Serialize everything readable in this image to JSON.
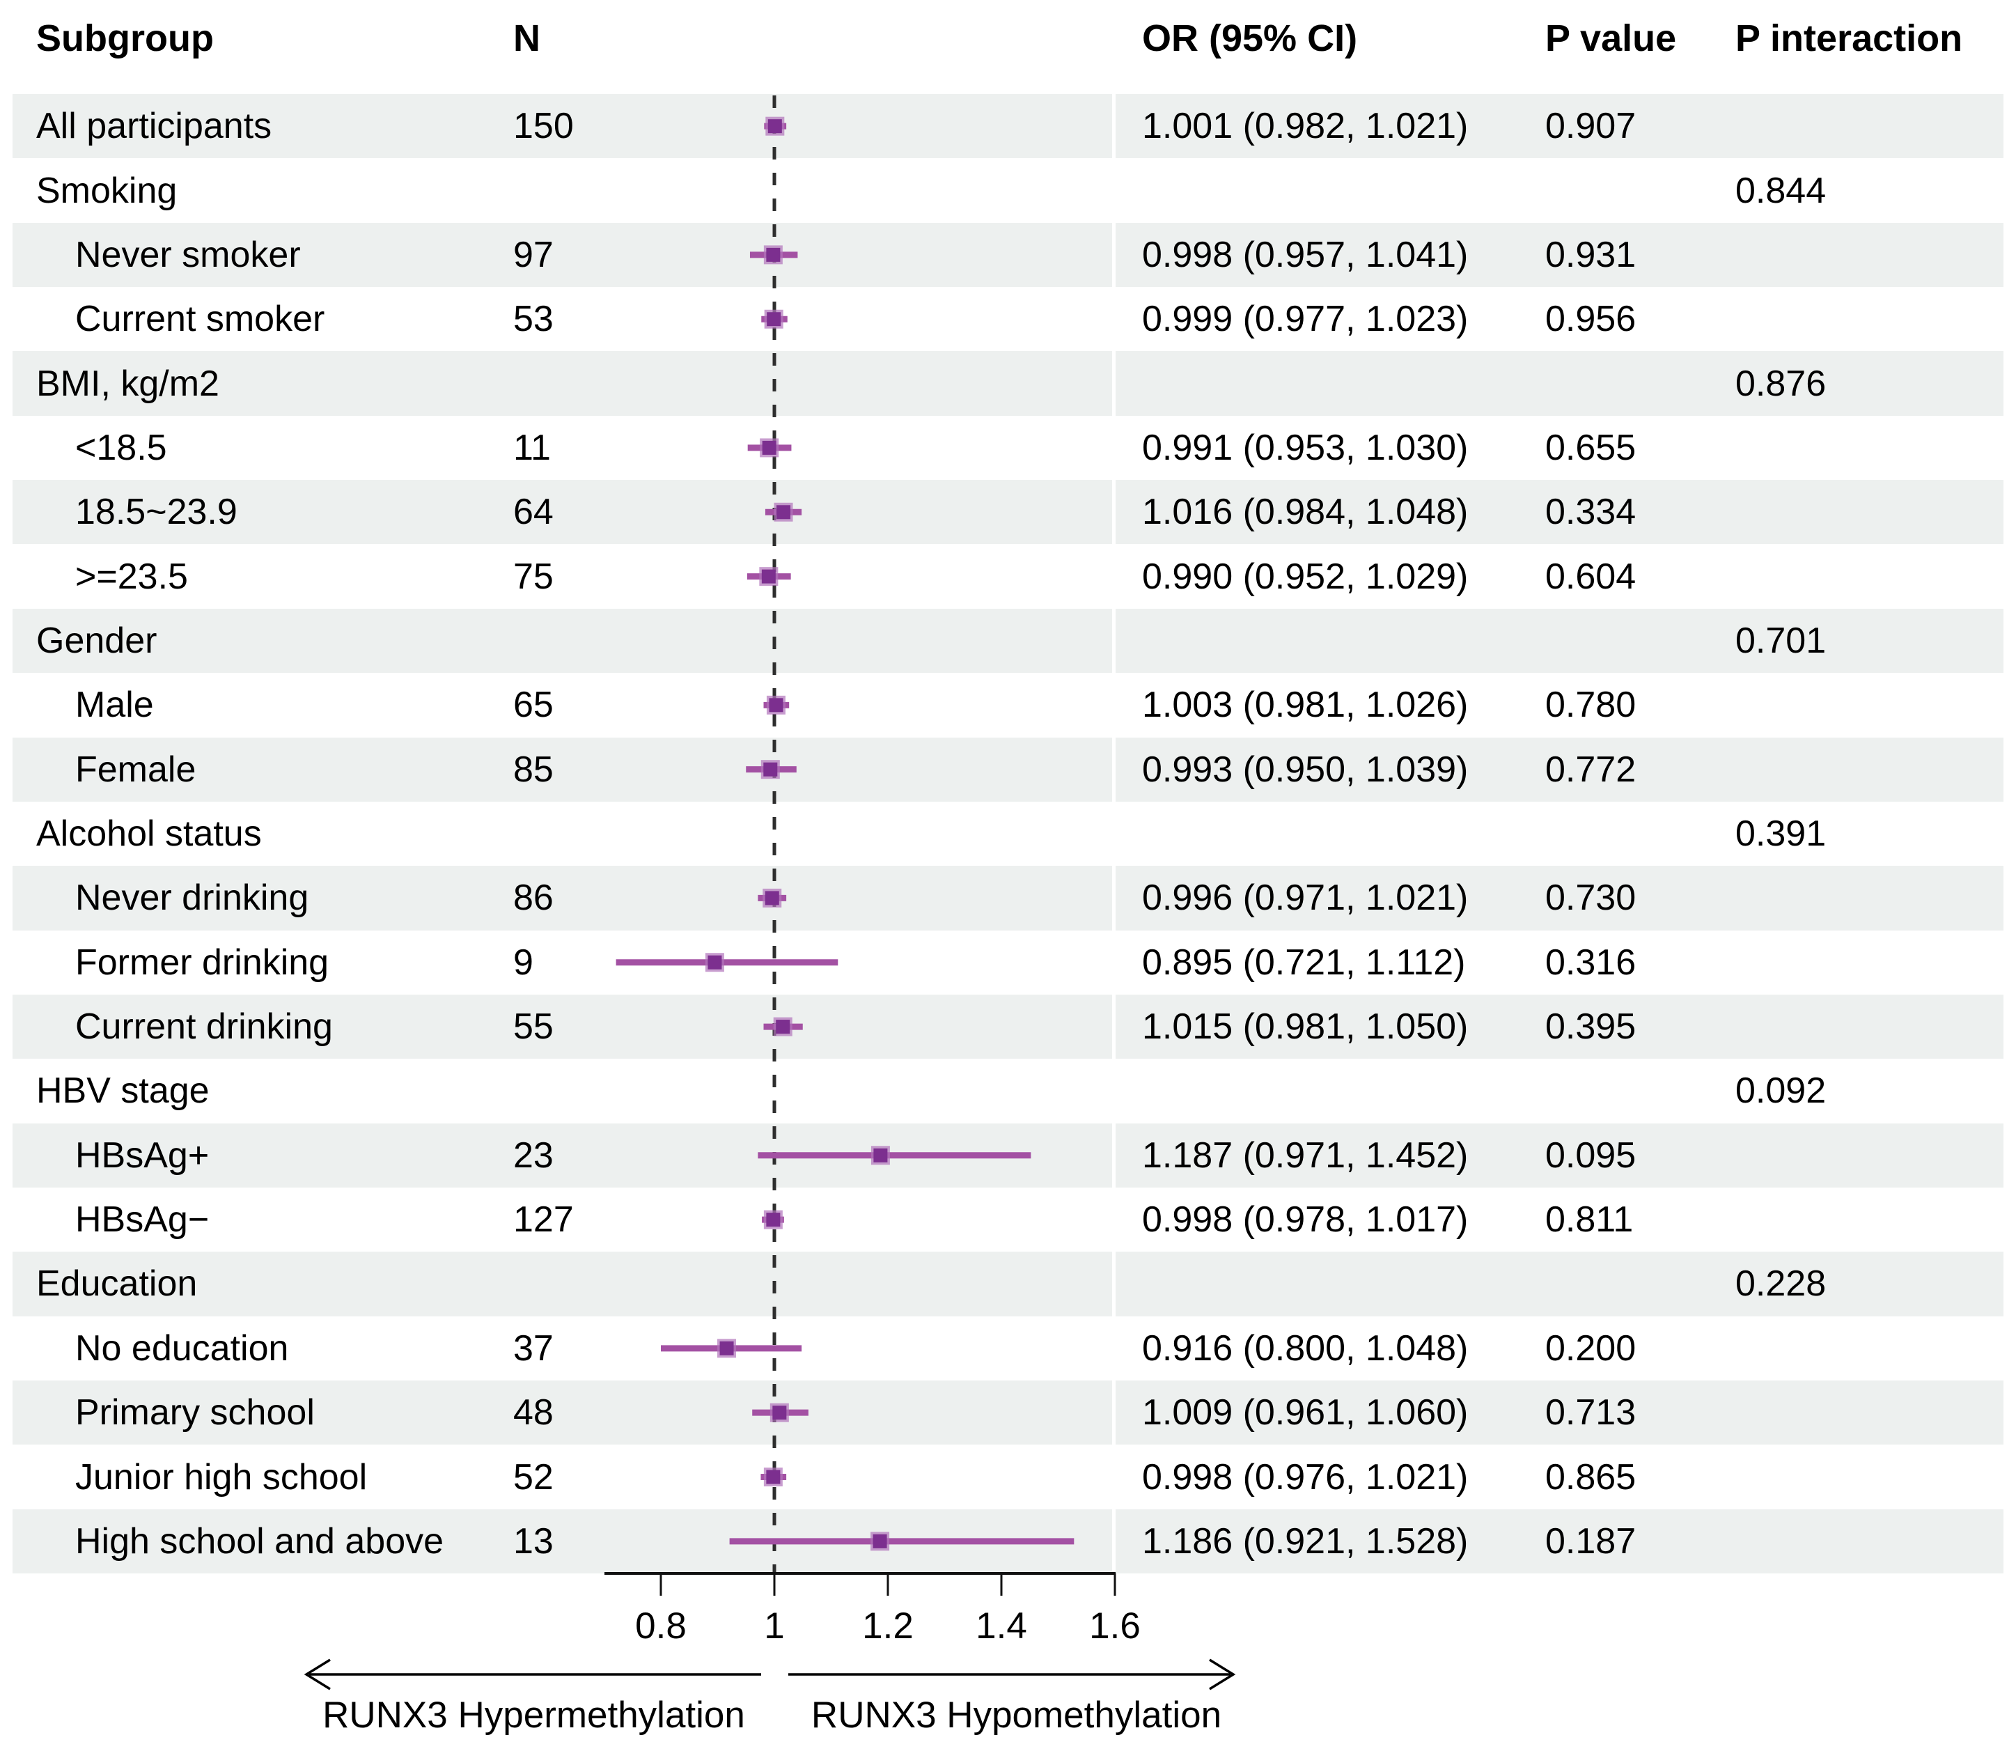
{
  "header": {
    "subgroup": "Subgroup",
    "n": "N",
    "or_ci": "OR (95% CI)",
    "p_value": "P value",
    "p_interaction": "P interaction"
  },
  "axis": {
    "tick_labels": [
      "0.8",
      "1",
      "1.2",
      "1.4",
      "1.6"
    ],
    "tick_values": [
      0.8,
      1,
      1.2,
      1.4,
      1.6
    ],
    "reference_value": 1,
    "range_min": 0.7,
    "range_max": 1.6
  },
  "footer": {
    "left_arrow_label": "RUNX3 Hypermethylation",
    "right_arrow_label": "RUNX3 Hypomethylation"
  },
  "colors": {
    "marker_core": "#7c2f8f",
    "marker_halo": "#b173ba",
    "ci_line": "#a351a3",
    "shaded_row": "#edf0ef",
    "reference_line": "#2e2e2e",
    "axis_line": "#111111",
    "text": "#000000"
  },
  "chart_data": {
    "type": "forest",
    "title": "",
    "columns": [
      "Subgroup",
      "N",
      "OR (95% CI)",
      "P value",
      "P interaction"
    ],
    "or_axis": {
      "ticks": [
        0.8,
        1,
        1.2,
        1.4,
        1.6
      ],
      "min": 0.7,
      "max": 1.6,
      "reference": 1
    },
    "effect_direction": {
      "left": "RUNX3 Hypermethylation",
      "right": "RUNX3 Hypomethylation"
    },
    "rows": [
      {
        "label": "All participants",
        "indent": 0,
        "shaded": true,
        "n": "150",
        "or": 1.001,
        "lo": 0.982,
        "hi": 1.021,
        "or_ci": "1.001 (0.982, 1.021)",
        "p": "0.907",
        "p_int": ""
      },
      {
        "label": "Smoking",
        "indent": 0,
        "shaded": false,
        "n": "",
        "or_ci": "",
        "p": "",
        "p_int": "0.844"
      },
      {
        "label": "Never smoker",
        "indent": 1,
        "shaded": true,
        "n": "97",
        "or": 0.998,
        "lo": 0.957,
        "hi": 1.041,
        "or_ci": "0.998 (0.957, 1.041)",
        "p": "0.931",
        "p_int": ""
      },
      {
        "label": "Current smoker",
        "indent": 1,
        "shaded": false,
        "n": "53",
        "or": 0.999,
        "lo": 0.977,
        "hi": 1.023,
        "or_ci": "0.999 (0.977, 1.023)",
        "p": "0.956",
        "p_int": ""
      },
      {
        "label": "BMI, kg/m2",
        "indent": 0,
        "shaded": true,
        "n": "",
        "or_ci": "",
        "p": "",
        "p_int": "0.876"
      },
      {
        "label": "<18.5",
        "indent": 1,
        "shaded": false,
        "n": "11",
        "or": 0.991,
        "lo": 0.953,
        "hi": 1.03,
        "or_ci": "0.991 (0.953, 1.030)",
        "p": "0.655",
        "p_int": ""
      },
      {
        "label": "18.5~23.9",
        "indent": 1,
        "shaded": true,
        "n": "64",
        "or": 1.016,
        "lo": 0.984,
        "hi": 1.048,
        "or_ci": "1.016 (0.984, 1.048)",
        "p": "0.334",
        "p_int": ""
      },
      {
        "label": ">=23.5",
        "indent": 1,
        "shaded": false,
        "n": "75",
        "or": 0.99,
        "lo": 0.952,
        "hi": 1.029,
        "or_ci": "0.990 (0.952, 1.029)",
        "p": "0.604",
        "p_int": ""
      },
      {
        "label": "Gender",
        "indent": 0,
        "shaded": true,
        "n": "",
        "or_ci": "",
        "p": "",
        "p_int": "0.701"
      },
      {
        "label": "Male",
        "indent": 1,
        "shaded": false,
        "n": "65",
        "or": 1.003,
        "lo": 0.981,
        "hi": 1.026,
        "or_ci": "1.003 (0.981, 1.026)",
        "p": "0.780",
        "p_int": ""
      },
      {
        "label": "Female",
        "indent": 1,
        "shaded": true,
        "n": "85",
        "or": 0.993,
        "lo": 0.95,
        "hi": 1.039,
        "or_ci": "0.993 (0.950, 1.039)",
        "p": "0.772",
        "p_int": ""
      },
      {
        "label": "Alcohol status",
        "indent": 0,
        "shaded": false,
        "n": "",
        "or_ci": "",
        "p": "",
        "p_int": "0.391"
      },
      {
        "label": "Never drinking",
        "indent": 1,
        "shaded": true,
        "n": "86",
        "or": 0.996,
        "lo": 0.971,
        "hi": 1.021,
        "or_ci": "0.996 (0.971, 1.021)",
        "p": "0.730",
        "p_int": ""
      },
      {
        "label": "Former drinking",
        "indent": 1,
        "shaded": false,
        "n": "9",
        "or": 0.895,
        "lo": 0.721,
        "hi": 1.112,
        "or_ci": "0.895 (0.721, 1.112)",
        "p": "0.316",
        "p_int": ""
      },
      {
        "label": "Current drinking",
        "indent": 1,
        "shaded": true,
        "n": "55",
        "or": 1.015,
        "lo": 0.981,
        "hi": 1.05,
        "or_ci": "1.015 (0.981, 1.050)",
        "p": "0.395",
        "p_int": ""
      },
      {
        "label": "HBV stage",
        "indent": 0,
        "shaded": false,
        "n": "",
        "or_ci": "",
        "p": "",
        "p_int": "0.092"
      },
      {
        "label": "HBsAg+",
        "indent": 1,
        "shaded": true,
        "n": "23",
        "or": 1.187,
        "lo": 0.971,
        "hi": 1.452,
        "or_ci": "1.187 (0.971, 1.452)",
        "p": "0.095",
        "p_int": ""
      },
      {
        "label": "HBsAg−",
        "indent": 1,
        "shaded": false,
        "n": "127",
        "or": 0.998,
        "lo": 0.978,
        "hi": 1.017,
        "or_ci": "0.998 (0.978, 1.017)",
        "p": "0.811",
        "p_int": ""
      },
      {
        "label": "Education",
        "indent": 0,
        "shaded": true,
        "n": "",
        "or_ci": "",
        "p": "",
        "p_int": "0.228"
      },
      {
        "label": "No education",
        "indent": 1,
        "shaded": false,
        "n": "37",
        "or": 0.916,
        "lo": 0.8,
        "hi": 1.048,
        "or_ci": "0.916 (0.800, 1.048)",
        "p": "0.200",
        "p_int": ""
      },
      {
        "label": "Primary school",
        "indent": 1,
        "shaded": true,
        "n": "48",
        "or": 1.009,
        "lo": 0.961,
        "hi": 1.06,
        "or_ci": "1.009 (0.961, 1.060)",
        "p": "0.713",
        "p_int": ""
      },
      {
        "label": "Junior high school",
        "indent": 1,
        "shaded": false,
        "n": "52",
        "or": 0.998,
        "lo": 0.976,
        "hi": 1.021,
        "or_ci": "0.998 (0.976, 1.021)",
        "p": "0.865",
        "p_int": ""
      },
      {
        "label": "High school and above",
        "indent": 1,
        "shaded": true,
        "n": "13",
        "or": 1.186,
        "lo": 0.921,
        "hi": 1.528,
        "or_ci": "1.186 (0.921, 1.528)",
        "p": "0.187",
        "p_int": ""
      }
    ]
  }
}
